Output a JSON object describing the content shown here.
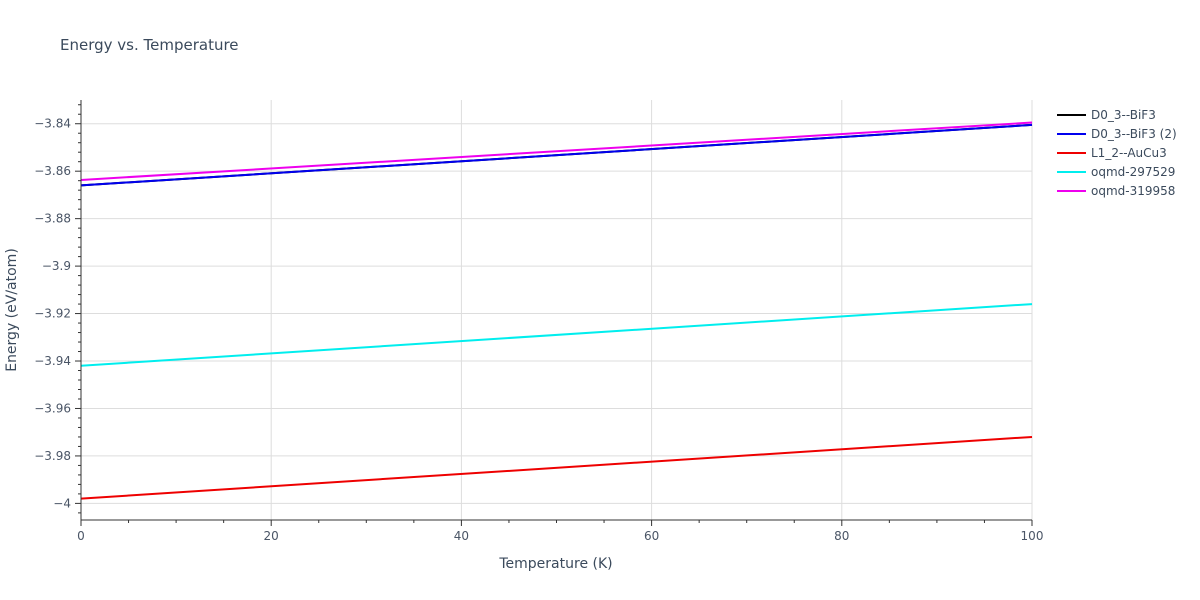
{
  "chart_data": {
    "type": "line",
    "title": "Energy vs. Temperature",
    "xlabel": "Temperature (K)",
    "ylabel": "Energy (eV/atom)",
    "xlim": [
      0,
      100
    ],
    "ylim": [
      -4.007,
      -3.83
    ],
    "xticks": [
      0,
      20,
      40,
      60,
      80,
      100
    ],
    "xtick_labels": [
      "0",
      "20",
      "40",
      "60",
      "80",
      "100"
    ],
    "yticks": [
      -4.0,
      -3.98,
      -3.96,
      -3.94,
      -3.92,
      -3.9,
      -3.88,
      -3.86,
      -3.84
    ],
    "ytick_labels": [
      "−4",
      "−3.98",
      "−3.96",
      "−3.94",
      "−3.92",
      "−3.9",
      "−3.88",
      "−3.86",
      "−3.84"
    ],
    "grid": true,
    "legend_position": "top-right",
    "series": [
      {
        "name": "D0_3--BiF3",
        "color": "#000000",
        "x": [
          0,
          100
        ],
        "y": [
          -3.866,
          -3.8405
        ]
      },
      {
        "name": "D0_3--BiF3 (2)",
        "color": "#0000ee",
        "x": [
          0,
          100
        ],
        "y": [
          -3.866,
          -3.8405
        ]
      },
      {
        "name": "L1_2--AuCu3",
        "color": "#ee0000",
        "x": [
          0,
          100
        ],
        "y": [
          -3.998,
          -3.972
        ]
      },
      {
        "name": "oqmd-297529",
        "color": "#00eeee",
        "x": [
          0,
          100
        ],
        "y": [
          -3.942,
          -3.916
        ]
      },
      {
        "name": "oqmd-319958",
        "color": "#ee00ee",
        "x": [
          0,
          100
        ],
        "y": [
          -3.8637,
          -3.8395
        ]
      }
    ]
  }
}
